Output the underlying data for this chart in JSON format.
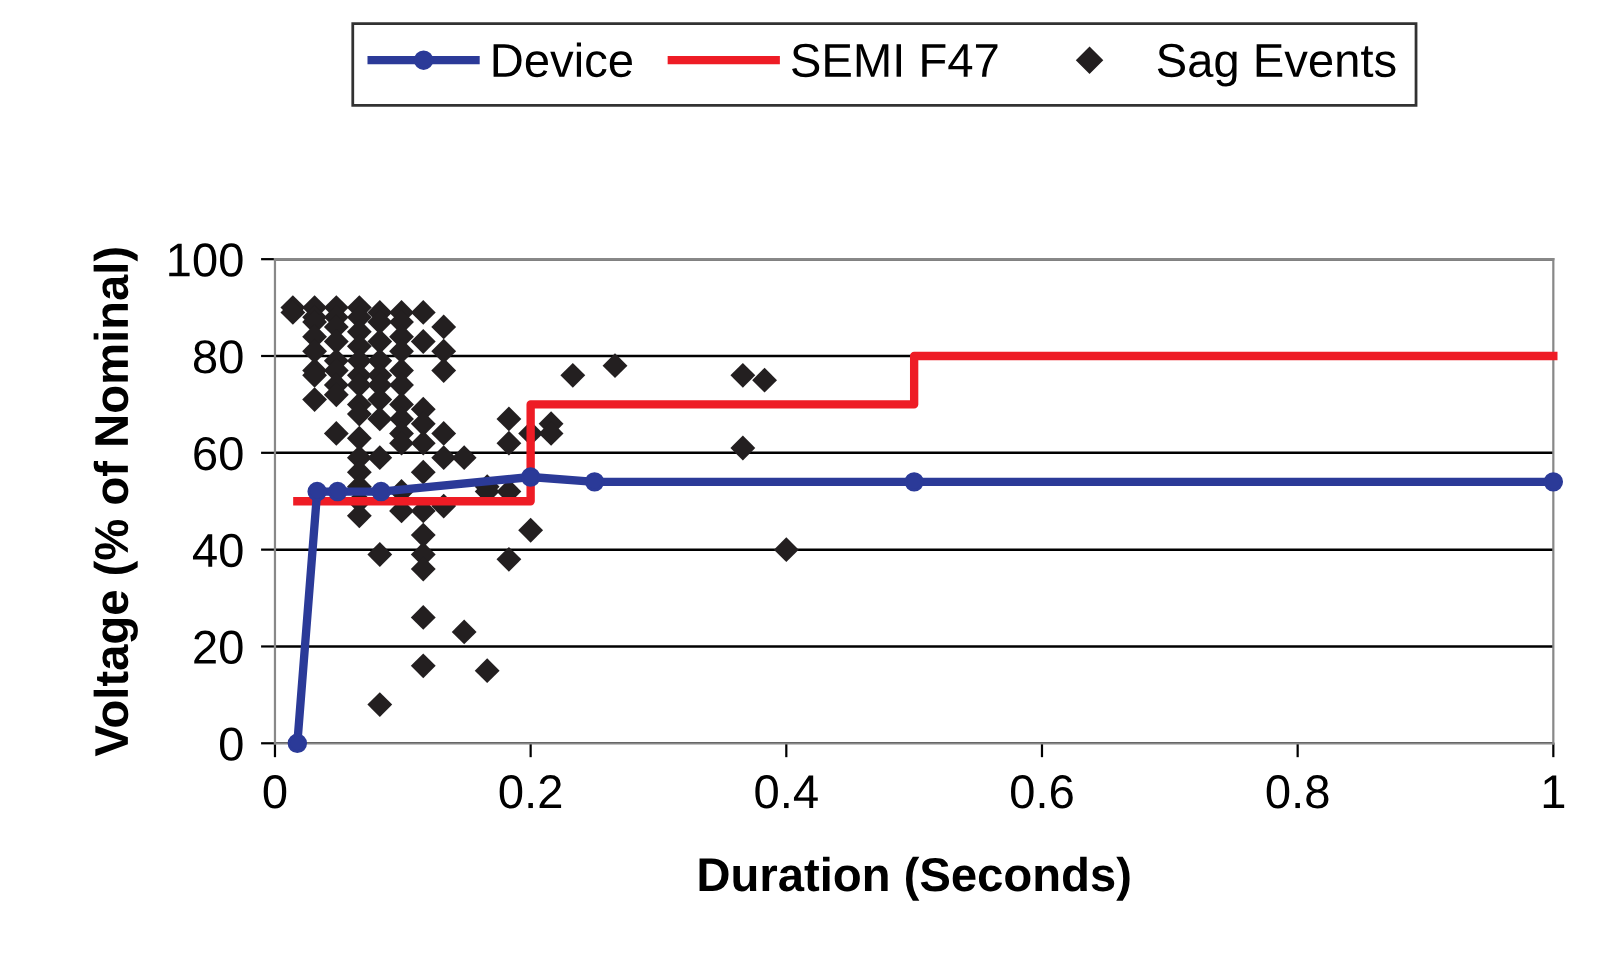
{
  "chart_data": {
    "type": "line",
    "xlabel": "Duration (Seconds)",
    "ylabel": "Voltage (% of Nominal)",
    "xlim": [
      0,
      1
    ],
    "xticks": [
      0,
      0.2,
      0.4,
      0.6,
      0.8,
      1
    ],
    "ylim": [
      0,
      100
    ],
    "yticks": [
      0,
      20,
      40,
      60,
      80,
      100
    ],
    "grid": "y",
    "legend": "top",
    "series": [
      {
        "name": "Device",
        "color": "#2b3a98",
        "marker": "circle",
        "x": [
          0.0175,
          0.033,
          0.049,
          0.083,
          0.2,
          0.25,
          0.5,
          1
        ],
        "values": [
          0,
          52,
          52,
          52,
          55,
          54,
          54,
          54
        ]
      },
      {
        "name": "SEMI F47",
        "color": "#ee1c25",
        "marker": "none",
        "x": [
          0.0175,
          0.2,
          0.2,
          0.5,
          0.5,
          1
        ],
        "values": [
          50,
          50,
          70,
          70,
          80,
          80
        ]
      },
      {
        "name": "Sag Events",
        "type": "scatter",
        "color": "#231f20",
        "marker": "diamond",
        "x": [
          0.014,
          0.014,
          0.031,
          0.031,
          0.031,
          0.031,
          0.031,
          0.031,
          0.031,
          0.031,
          0.048,
          0.048,
          0.048,
          0.048,
          0.048,
          0.048,
          0.048,
          0.048,
          0.048,
          0.066,
          0.066,
          0.066,
          0.066,
          0.066,
          0.066,
          0.066,
          0.066,
          0.066,
          0.066,
          0.066,
          0.066,
          0.066,
          0.066,
          0.066,
          0.082,
          0.082,
          0.082,
          0.082,
          0.082,
          0.082,
          0.082,
          0.082,
          0.082,
          0.082,
          0.082,
          0.099,
          0.099,
          0.099,
          0.099,
          0.099,
          0.099,
          0.099,
          0.099,
          0.099,
          0.099,
          0.099,
          0.099,
          0.116,
          0.116,
          0.116,
          0.116,
          0.116,
          0.116,
          0.116,
          0.116,
          0.116,
          0.116,
          0.116,
          0.116,
          0.132,
          0.132,
          0.132,
          0.132,
          0.132,
          0.132,
          0.148,
          0.148,
          0.166,
          0.166,
          0.166,
          0.183,
          0.183,
          0.183,
          0.183,
          0.2,
          0.2,
          0.216,
          0.216,
          0.233,
          0.266,
          0.366,
          0.366,
          0.383,
          0.4
        ],
        "values": [
          90,
          89,
          90,
          88,
          87,
          84,
          81,
          77,
          76,
          71,
          90,
          88,
          86,
          83,
          79,
          77,
          74,
          72,
          64,
          90,
          88,
          85,
          82,
          79,
          76,
          74,
          70,
          68,
          63,
          59,
          56,
          53,
          50,
          47,
          89,
          87,
          83,
          79,
          76,
          74,
          71,
          67,
          59,
          39,
          8,
          89,
          87,
          84,
          81,
          77,
          74,
          70,
          67,
          64,
          62,
          52,
          48,
          89,
          83,
          69,
          66,
          62,
          56,
          48,
          43,
          39,
          36,
          26,
          16,
          86,
          81,
          77,
          64,
          59,
          49,
          59,
          23,
          53,
          52,
          15,
          67,
          62,
          52,
          38,
          64,
          44,
          66,
          64,
          76,
          78,
          76,
          61,
          75,
          40
        ]
      }
    ]
  }
}
